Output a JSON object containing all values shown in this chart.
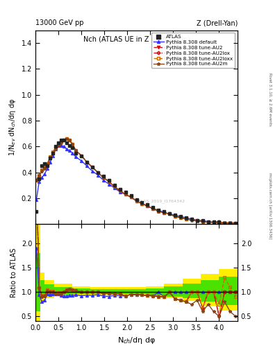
{
  "title_main": "Nch (ATLAS UE in Z production)",
  "header_left": "13000 GeV pp",
  "header_right": "Z (Drell-Yan)",
  "ylabel_main": "1/N$_{ev}$ dN$_{ch}$/dη dφ",
  "ylabel_ratio": "Ratio to ATLAS",
  "xlabel": "N$_{ch}$/dη dφ",
  "side_text_top": "Rivet 3.1.10, ≥ 2.6M events",
  "side_text_bottom": "mcplots.cern.ch [arXiv:1306.3436]",
  "watermark": "ATLAS_2019_I1764342",
  "ylim_main": [
    0.0,
    1.5
  ],
  "ylim_ratio": [
    0.4,
    2.4
  ],
  "xlim": [
    0.0,
    4.4
  ],
  "atlas_x": [
    0.02,
    0.08,
    0.14,
    0.2,
    0.26,
    0.32,
    0.38,
    0.44,
    0.5,
    0.56,
    0.62,
    0.68,
    0.74,
    0.8,
    0.88,
    1.0,
    1.12,
    1.24,
    1.36,
    1.48,
    1.6,
    1.72,
    1.84,
    1.96,
    2.08,
    2.2,
    2.32,
    2.44,
    2.56,
    2.68,
    2.8,
    2.92,
    3.04,
    3.16,
    3.28,
    3.4,
    3.52,
    3.64,
    3.76,
    3.88,
    4.0,
    4.12,
    4.24,
    4.36
  ],
  "atlas_y": [
    0.1,
    0.35,
    0.45,
    0.47,
    0.45,
    0.51,
    0.55,
    0.6,
    0.63,
    0.65,
    0.65,
    0.63,
    0.61,
    0.59,
    0.55,
    0.53,
    0.48,
    0.44,
    0.4,
    0.37,
    0.34,
    0.3,
    0.27,
    0.25,
    0.22,
    0.19,
    0.17,
    0.15,
    0.13,
    0.11,
    0.1,
    0.08,
    0.07,
    0.06,
    0.05,
    0.04,
    0.03,
    0.03,
    0.02,
    0.02,
    0.02,
    0.01,
    0.01,
    0.01
  ],
  "atlas_xerr": 0.03,
  "atlas_yerr": [
    0.005,
    0.01,
    0.01,
    0.01,
    0.01,
    0.01,
    0.01,
    0.01,
    0.01,
    0.01,
    0.01,
    0.01,
    0.01,
    0.01,
    0.01,
    0.01,
    0.01,
    0.01,
    0.01,
    0.01,
    0.01,
    0.01,
    0.01,
    0.008,
    0.008,
    0.007,
    0.006,
    0.005,
    0.005,
    0.004,
    0.004,
    0.003,
    0.003,
    0.002,
    0.002,
    0.002,
    0.002,
    0.001,
    0.001,
    0.001,
    0.001,
    0.001,
    0.001,
    0.001
  ],
  "pythia_default_x": [
    0.02,
    0.08,
    0.14,
    0.2,
    0.26,
    0.32,
    0.38,
    0.44,
    0.5,
    0.56,
    0.62,
    0.68,
    0.74,
    0.8,
    0.88,
    1.0,
    1.12,
    1.24,
    1.36,
    1.48,
    1.6,
    1.72,
    1.84,
    1.96,
    2.08,
    2.2,
    2.32,
    2.44,
    2.56,
    2.68,
    2.8,
    2.92,
    3.04,
    3.16,
    3.28,
    3.4,
    3.52,
    3.64,
    3.76,
    3.88,
    4.0,
    4.12,
    4.24,
    4.36
  ],
  "pythia_default_y": [
    0.19,
    0.33,
    0.36,
    0.39,
    0.43,
    0.48,
    0.53,
    0.58,
    0.61,
    0.61,
    0.6,
    0.58,
    0.57,
    0.55,
    0.52,
    0.49,
    0.45,
    0.41,
    0.38,
    0.34,
    0.31,
    0.28,
    0.25,
    0.23,
    0.21,
    0.18,
    0.16,
    0.14,
    0.12,
    0.11,
    0.09,
    0.08,
    0.07,
    0.06,
    0.05,
    0.04,
    0.03,
    0.03,
    0.02,
    0.02,
    0.02,
    0.01,
    0.01,
    0.01
  ],
  "pythia_au2_x": [
    0.02,
    0.08,
    0.14,
    0.2,
    0.26,
    0.32,
    0.38,
    0.44,
    0.5,
    0.56,
    0.62,
    0.68,
    0.74,
    0.8,
    0.88,
    1.0,
    1.12,
    1.24,
    1.36,
    1.48,
    1.6,
    1.72,
    1.84,
    1.96,
    2.08,
    2.2,
    2.32,
    2.44,
    2.56,
    2.68,
    2.8,
    2.92,
    3.04,
    3.16,
    3.28,
    3.4,
    3.52,
    3.64,
    3.76,
    3.88,
    4.0,
    4.12,
    4.24,
    4.36
  ],
  "pythia_au2_y": [
    0.34,
    0.38,
    0.41,
    0.43,
    0.46,
    0.51,
    0.55,
    0.58,
    0.61,
    0.63,
    0.65,
    0.66,
    0.65,
    0.62,
    0.57,
    0.53,
    0.48,
    0.44,
    0.4,
    0.36,
    0.33,
    0.29,
    0.26,
    0.23,
    0.21,
    0.18,
    0.16,
    0.14,
    0.12,
    0.1,
    0.09,
    0.08,
    0.06,
    0.05,
    0.04,
    0.04,
    0.03,
    0.02,
    0.02,
    0.02,
    0.01,
    0.01,
    0.01,
    0.01
  ],
  "pythia_au2lox_x": [
    0.02,
    0.08,
    0.14,
    0.2,
    0.26,
    0.32,
    0.38,
    0.44,
    0.5,
    0.56,
    0.62,
    0.68,
    0.74,
    0.8,
    0.88,
    1.0,
    1.12,
    1.24,
    1.36,
    1.48,
    1.6,
    1.72,
    1.84,
    1.96,
    2.08,
    2.2,
    2.32,
    2.44,
    2.56,
    2.68,
    2.8,
    2.92,
    3.04,
    3.16,
    3.28,
    3.4,
    3.52,
    3.64,
    3.76,
    3.88,
    4.0,
    4.12,
    4.24,
    4.36
  ],
  "pythia_au2lox_y": [
    0.34,
    0.38,
    0.42,
    0.44,
    0.47,
    0.52,
    0.56,
    0.59,
    0.62,
    0.64,
    0.65,
    0.66,
    0.65,
    0.62,
    0.57,
    0.53,
    0.48,
    0.44,
    0.4,
    0.36,
    0.33,
    0.29,
    0.26,
    0.23,
    0.21,
    0.18,
    0.16,
    0.14,
    0.12,
    0.1,
    0.09,
    0.08,
    0.06,
    0.05,
    0.04,
    0.04,
    0.03,
    0.02,
    0.02,
    0.02,
    0.01,
    0.01,
    0.01,
    0.01
  ],
  "pythia_au2loxx_x": [
    0.02,
    0.08,
    0.14,
    0.2,
    0.26,
    0.32,
    0.38,
    0.44,
    0.5,
    0.56,
    0.62,
    0.68,
    0.74,
    0.8,
    0.88,
    1.0,
    1.12,
    1.24,
    1.36,
    1.48,
    1.6,
    1.72,
    1.84,
    1.96,
    2.08,
    2.2,
    2.32,
    2.44,
    2.56,
    2.68,
    2.8,
    2.92,
    3.04,
    3.16,
    3.28,
    3.4,
    3.52,
    3.64,
    3.76,
    3.88,
    4.0,
    4.12,
    4.24,
    4.36
  ],
  "pythia_au2loxx_y": [
    0.34,
    0.38,
    0.42,
    0.44,
    0.47,
    0.52,
    0.56,
    0.59,
    0.62,
    0.64,
    0.65,
    0.66,
    0.65,
    0.62,
    0.57,
    0.53,
    0.48,
    0.44,
    0.4,
    0.36,
    0.33,
    0.29,
    0.26,
    0.23,
    0.21,
    0.18,
    0.16,
    0.14,
    0.12,
    0.1,
    0.09,
    0.08,
    0.06,
    0.05,
    0.04,
    0.04,
    0.03,
    0.02,
    0.02,
    0.02,
    0.015,
    0.013,
    0.011,
    0.009
  ],
  "pythia_au2m_x": [
    0.02,
    0.08,
    0.14,
    0.2,
    0.26,
    0.32,
    0.38,
    0.44,
    0.5,
    0.56,
    0.62,
    0.68,
    0.74,
    0.8,
    0.88,
    1.0,
    1.12,
    1.24,
    1.36,
    1.48,
    1.6,
    1.72,
    1.84,
    1.96,
    2.08,
    2.2,
    2.32,
    2.44,
    2.56,
    2.68,
    2.8,
    2.92,
    3.04,
    3.16,
    3.28,
    3.4,
    3.52,
    3.64,
    3.76,
    3.88,
    4.0,
    4.12,
    4.24,
    4.36
  ],
  "pythia_au2m_y": [
    0.34,
    0.38,
    0.41,
    0.43,
    0.46,
    0.51,
    0.55,
    0.58,
    0.61,
    0.63,
    0.65,
    0.66,
    0.65,
    0.62,
    0.57,
    0.53,
    0.48,
    0.44,
    0.4,
    0.36,
    0.33,
    0.29,
    0.26,
    0.23,
    0.21,
    0.18,
    0.16,
    0.14,
    0.12,
    0.1,
    0.09,
    0.08,
    0.06,
    0.05,
    0.04,
    0.03,
    0.025,
    0.018,
    0.015,
    0.012,
    0.01,
    0.008,
    0.006,
    0.005
  ],
  "color_atlas": "#222222",
  "color_default": "#3333ff",
  "color_au2": "#cc1111",
  "color_au2lox": "#cc1111",
  "color_au2loxx": "#cc6600",
  "color_au2m": "#8b4513",
  "band_yellow_lo_vals": [
    0.4,
    0.8,
    0.88,
    0.92,
    0.94,
    0.95,
    0.95,
    0.95,
    0.92,
    0.88,
    0.82,
    0.72,
    0.62
  ],
  "band_yellow_hi_vals": [
    2.4,
    1.4,
    1.25,
    1.18,
    1.12,
    1.1,
    1.1,
    1.1,
    1.12,
    1.18,
    1.28,
    1.38,
    1.48
  ],
  "band_yellow_edges": [
    0.0,
    0.1,
    0.2,
    0.4,
    0.8,
    1.2,
    1.6,
    2.0,
    2.4,
    2.8,
    3.2,
    3.6,
    4.0,
    4.4
  ],
  "band_green_lo_vals": [
    0.6,
    0.88,
    0.92,
    0.95,
    0.96,
    0.96,
    0.96,
    0.96,
    0.94,
    0.91,
    0.87,
    0.8,
    0.73
  ],
  "band_green_hi_vals": [
    1.8,
    1.25,
    1.16,
    1.1,
    1.07,
    1.06,
    1.06,
    1.06,
    1.08,
    1.12,
    1.18,
    1.25,
    1.32
  ],
  "band_green_edges": [
    0.0,
    0.1,
    0.2,
    0.4,
    0.8,
    1.2,
    1.6,
    2.0,
    2.4,
    2.8,
    3.2,
    3.6,
    4.0,
    4.4
  ]
}
